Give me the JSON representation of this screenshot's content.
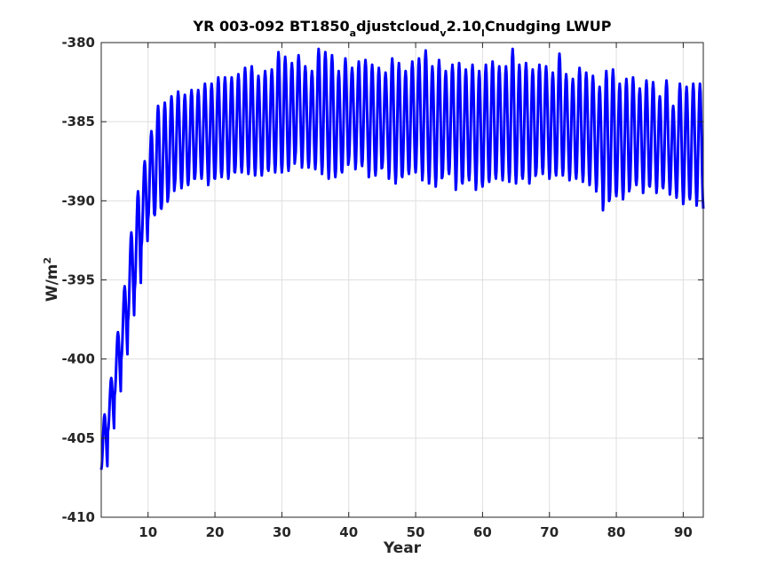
{
  "chart_data": {
    "type": "line",
    "title": {
      "segments": [
        {
          "text": "YR 003-092 BT1850",
          "sub": false
        },
        {
          "text": "a",
          "sub": true
        },
        {
          "text": "djustcloud",
          "sub": false
        },
        {
          "text": "v",
          "sub": true
        },
        {
          "text": "2.10",
          "sub": false
        },
        {
          "text": "l",
          "sub": true
        },
        {
          "text": "Cnudging LWUP",
          "sub": false
        }
      ]
    },
    "xlabel": "Year",
    "ylabel": {
      "base": "W/m",
      "sup": "2"
    },
    "xlim": [
      3,
      93
    ],
    "ylim": [
      -410,
      -380
    ],
    "xticks": [
      10,
      20,
      30,
      40,
      50,
      60,
      70,
      80,
      90
    ],
    "yticks": [
      -410,
      -405,
      -400,
      -395,
      -390,
      -385,
      -380
    ],
    "grid": true,
    "series": [
      {
        "color": "#0000ff",
        "line_width": 3,
        "seasonal_cycle": "monthly, one cycle per year",
        "x": [
          3,
          4,
          5,
          6,
          7,
          8,
          9,
          10,
          11,
          12,
          13,
          14,
          15,
          16,
          17,
          18,
          19,
          20,
          21,
          22,
          23,
          24,
          25,
          26,
          27,
          28,
          29,
          30,
          31,
          32,
          33,
          34,
          35,
          36,
          37,
          38,
          39,
          40,
          41,
          42,
          43,
          44,
          45,
          46,
          47,
          48,
          49,
          50,
          51,
          52,
          53,
          54,
          55,
          56,
          57,
          58,
          59,
          60,
          61,
          62,
          63,
          64,
          65,
          66,
          67,
          68,
          69,
          70,
          71,
          72,
          73,
          74,
          75,
          76,
          77,
          78,
          79,
          80,
          81,
          82,
          83,
          84,
          85,
          86,
          87,
          88,
          89,
          90,
          91,
          92,
          93
        ],
        "annual_max": [
          -403.5,
          -401.2,
          -398.3,
          -395.4,
          -392.0,
          -389.4,
          -387.5,
          -385.6,
          -384.0,
          -383.8,
          -383.4,
          -383.1,
          -383.3,
          -383.0,
          -383.0,
          -382.6,
          -382.6,
          -382.2,
          -382.2,
          -382.2,
          -382.0,
          -381.6,
          -381.5,
          -382.1,
          -381.8,
          -381.7,
          -380.6,
          -380.9,
          -381.3,
          -380.8,
          -381.5,
          -381.8,
          -380.4,
          -380.6,
          -380.8,
          -381.8,
          -381.0,
          -381.6,
          -381.2,
          -381.1,
          -381.4,
          -381.6,
          -381.9,
          -381.0,
          -381.3,
          -381.8,
          -381.2,
          -381.0,
          -380.5,
          -381.5,
          -381.1,
          -381.8,
          -381.4,
          -381.3,
          -381.7,
          -381.4,
          -381.8,
          -381.4,
          -381.2,
          -381.5,
          -381.5,
          -380.4,
          -381.4,
          -381.3,
          -381.7,
          -381.4,
          -381.5,
          -381.9,
          -380.7,
          -382.0,
          -382.3,
          -381.6,
          -381.9,
          -382.1,
          -382.8,
          -381.8,
          -381.7,
          -382.6,
          -382.3,
          -382.2,
          -382.9,
          -382.4,
          -382.5,
          -383.4,
          -382.4,
          -384.0,
          -382.6,
          -382.8,
          -382.6,
          -382.6,
          -382.7
        ],
        "annual_min": [
          -407.0,
          -404.6,
          -402.3,
          -400.0,
          -397.6,
          -395.6,
          -392.9,
          -391.2,
          -390.9,
          -390.5,
          -389.8,
          -389.0,
          -389.2,
          -389.0,
          -388.6,
          -388.6,
          -389.0,
          -388.6,
          -388.5,
          -388.6,
          -388.2,
          -388.2,
          -388.3,
          -388.4,
          -388.4,
          -388.1,
          -388.2,
          -388.2,
          -388.1,
          -387.3,
          -387.9,
          -387.9,
          -388.0,
          -388.3,
          -388.6,
          -388.5,
          -388.2,
          -387.5,
          -388.0,
          -387.8,
          -388.5,
          -388.4,
          -387.9,
          -388.6,
          -388.9,
          -388.5,
          -388.3,
          -388.2,
          -388.7,
          -388.9,
          -389.1,
          -388.5,
          -388.3,
          -389.3,
          -388.9,
          -388.7,
          -389.3,
          -389.1,
          -388.8,
          -388.6,
          -388.7,
          -388.8,
          -388.9,
          -388.6,
          -388.9,
          -388.3,
          -388.3,
          -388.6,
          -388.4,
          -388.4,
          -388.7,
          -388.6,
          -388.8,
          -389.0,
          -389.4,
          -390.6,
          -389.9,
          -389.7,
          -389.9,
          -389.2,
          -389.0,
          -389.5,
          -389.1,
          -389.5,
          -389.2,
          -389.6,
          -389.8,
          -390.2,
          -389.9,
          -390.3,
          -390.5
        ]
      }
    ]
  }
}
